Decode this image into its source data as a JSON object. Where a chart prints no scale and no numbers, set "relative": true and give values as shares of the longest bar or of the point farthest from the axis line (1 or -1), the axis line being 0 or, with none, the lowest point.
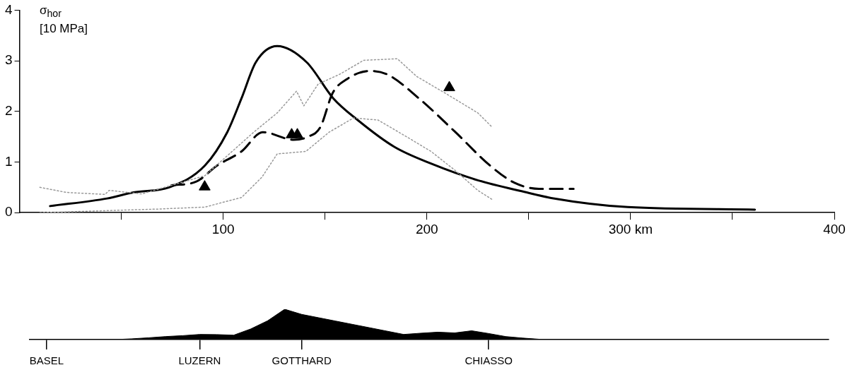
{
  "chart_data": [
    {
      "type": "line",
      "ylabel": "σ$_{hor}$ [10 MPa]",
      "xlim": [
        0,
        400
      ],
      "ylim": [
        0,
        4
      ],
      "xticks": [
        {
          "value": 50,
          "label": null
        },
        100,
        {
          "value": 150,
          "label": null
        },
        200,
        {
          "value": 250,
          "label": null
        },
        {
          "value": 300,
          "label": "300 km"
        },
        {
          "value": 350,
          "label": null
        },
        400
      ],
      "yticks": [
        0,
        1,
        2,
        3,
        4
      ],
      "grid": false,
      "legend": false,
      "marker": "none",
      "series": [
        {
          "type": "line",
          "color": "#999999",
          "line_style": "dotted",
          "x": [
            10,
            23,
            42,
            44,
            60,
            91,
            115,
            126.5,
            136,
            139.6,
            146.6,
            157,
            169,
            185.5,
            195,
            209,
            225,
            232
          ],
          "values": [
            0.5,
            0.4,
            0.36,
            0.44,
            0.37,
            0.73,
            1.59,
            1.97,
            2.4,
            2.11,
            2.54,
            2.73,
            3.01,
            3.04,
            2.69,
            2.36,
            1.97,
            1.69
          ]
        },
        {
          "type": "line",
          "color": "#999999",
          "line_style": "dotted",
          "x": [
            10,
            67.5,
            91,
            109,
            119,
            126.5,
            140.6,
            152,
            164,
            176,
            190,
            202,
            214,
            225,
            232
          ],
          "values": [
            0,
            0.07,
            0.11,
            0.3,
            0.7,
            1.16,
            1.21,
            1.59,
            1.87,
            1.83,
            1.5,
            1.21,
            0.83,
            0.44,
            0.26
          ]
        },
        {
          "type": "line",
          "color": "#000000",
          "line_style": "solid",
          "x": [
            15,
            43,
            56,
            73.5,
            91,
            102,
            109,
            116,
            126.5,
            141,
            154,
            166,
            184,
            202,
            225,
            249,
            261,
            298.6,
            361
          ],
          "values": [
            0.13,
            0.28,
            0.4,
            0.5,
            0.93,
            1.59,
            2.26,
            2.97,
            3.29,
            2.97,
            2.26,
            1.83,
            1.3,
            0.97,
            0.64,
            0.4,
            0.29,
            0.11,
            0.06
          ]
        },
        {
          "type": "line",
          "color": "#000000",
          "line_style": "dashed",
          "x": [
            74.6,
            86.6,
            97,
            109,
            119.4,
            134.6,
            141.7,
            147.7,
            153.7,
            160.8,
            172,
            180.6,
            196,
            214,
            231,
            243,
            255,
            272
          ],
          "values": [
            0.54,
            0.61,
            0.93,
            1.21,
            1.59,
            1.44,
            1.5,
            1.69,
            2.36,
            2.64,
            2.8,
            2.73,
            2.26,
            1.59,
            0.93,
            0.59,
            0.47,
            0.47
          ]
        },
        {
          "type": "scatter",
          "color": "#000000",
          "marker": "triangle",
          "x": [
            90.9,
            133.6,
            136.4,
            211
          ],
          "values": [
            0.51,
            1.54,
            1.54,
            2.47
          ]
        }
      ]
    },
    {
      "type": "area",
      "relative": true,
      "tick_labels": "x",
      "grid": false,
      "legend": false,
      "categories": [
        null,
        "BASEL",
        null,
        null,
        null,
        null,
        null,
        null,
        null,
        null,
        "LUZERN",
        null,
        null,
        null,
        null,
        null,
        "GOTTHARD",
        null,
        null,
        null,
        null,
        null,
        null,
        null,
        null,
        null,
        null,
        "CHIASSO",
        null,
        null,
        null,
        null,
        null,
        null,
        null,
        null,
        null,
        null,
        null,
        null,
        null,
        null,
        null,
        null,
        null,
        null,
        null,
        null
      ],
      "series": [
        {
          "color": "#000000",
          "values": [
            0,
            0,
            0,
            0,
            0,
            0,
            0.025,
            0.06,
            0.1,
            0.13,
            0.17,
            0.165,
            0.145,
            0.35,
            0.62,
            1,
            0.83,
            0.72,
            0.61,
            0.5,
            0.39,
            0.28,
            0.17,
            0.21,
            0.245,
            0.22,
            0.29,
            0.2,
            0.1,
            0.05,
            0.01,
            0,
            0,
            0,
            0,
            0,
            0,
            0,
            0,
            0,
            0,
            0,
            0,
            0,
            0,
            0,
            0,
            0
          ]
        }
      ]
    }
  ]
}
